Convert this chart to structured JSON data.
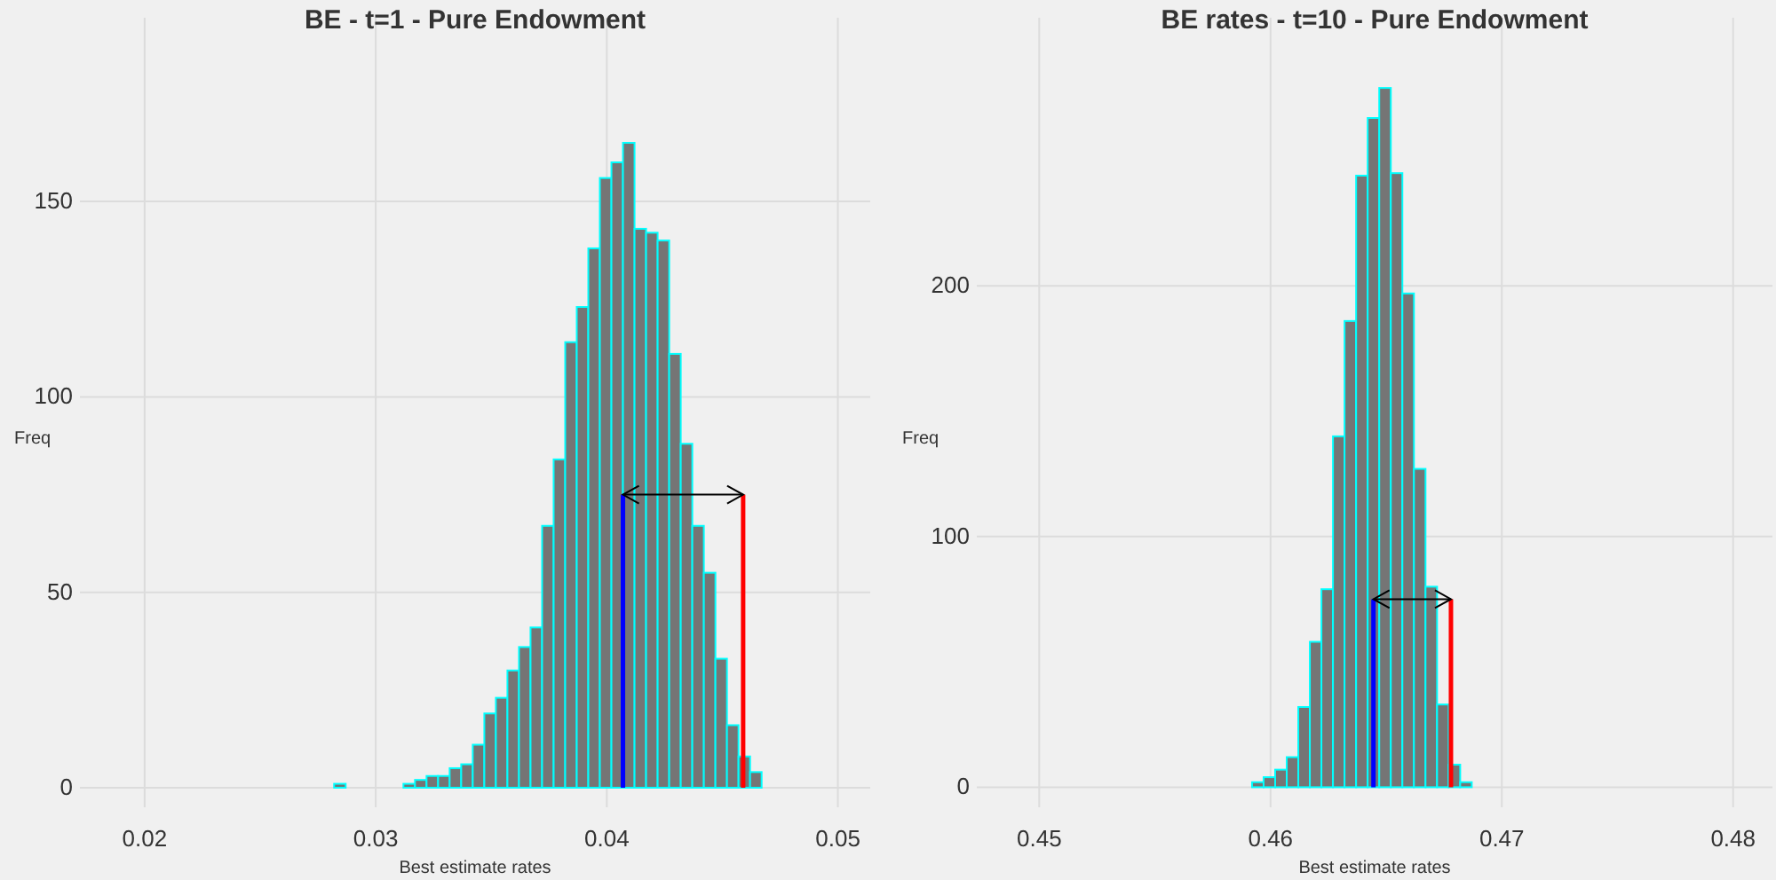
{
  "chart_data": [
    {
      "type": "histogram",
      "title": "BE - t=1 - Pure Endowment",
      "xlabel": "Best estimate rates",
      "ylabel": "Freq",
      "color": "#757575",
      "bins": [
        0.0267,
        0.0272,
        0.0277,
        0.0282,
        0.0287,
        0.0292,
        0.0297,
        0.0302,
        0.0307,
        0.0312,
        0.0317,
        0.0322,
        0.0327,
        0.0332,
        0.0337,
        0.0342,
        0.0347,
        0.0352,
        0.0357,
        0.0362,
        0.0367,
        0.0372,
        0.0377,
        0.0382,
        0.0387,
        0.0392,
        0.0397,
        0.0402,
        0.0407,
        0.0412,
        0.0417,
        0.0422,
        0.0427,
        0.0432,
        0.0437,
        0.0442,
        0.0447,
        0.0452,
        0.0457,
        0.0462,
        0.0467,
        0.0472,
        0.0477,
        0.0482
      ],
      "values": [
        0,
        0,
        0,
        1,
        0,
        0,
        0,
        0,
        0,
        1,
        2,
        3,
        3,
        5,
        6,
        11,
        19,
        23,
        30,
        36,
        41,
        67,
        84,
        114,
        123,
        138,
        156,
        160,
        165,
        143,
        142,
        140,
        111,
        88,
        67,
        55,
        33,
        16,
        8,
        4,
        0,
        0,
        0
      ],
      "series": [
        {
          "type": "line",
          "color": "#0000ff",
          "x": [
            0.0407,
            0.0407
          ],
          "values": [
            0,
            75
          ]
        },
        {
          "type": "line",
          "color": "#ff0000",
          "x": [
            0.0459,
            0.0459
          ],
          "values": [
            0,
            75
          ]
        }
      ],
      "xlim": [
        0.0172,
        0.0514
      ],
      "xticks": [
        0.02,
        0.03,
        0.04,
        0.05
      ],
      "ylim": [
        -5,
        197
      ],
      "yticks": [
        0,
        50,
        100,
        150
      ],
      "grid": true
    },
    {
      "type": "histogram",
      "title": "BE rates - t=10 - Pure Endowment",
      "xlabel": "Best estimate rates",
      "ylabel": "Freq",
      "color": "#757575",
      "bins": [
        0.4587,
        0.4592,
        0.4597,
        0.4602,
        0.4607,
        0.4612,
        0.4617,
        0.4622,
        0.4627,
        0.4632,
        0.4637,
        0.4642,
        0.4647,
        0.4652,
        0.4657,
        0.4662,
        0.4667,
        0.4672,
        0.4677,
        0.4682,
        0.4687
      ],
      "values": [
        0,
        2,
        4,
        7,
        12,
        32,
        58,
        79,
        140,
        186,
        244,
        267,
        279,
        245,
        197,
        127,
        80,
        33,
        9,
        2
      ],
      "series": [
        {
          "type": "line",
          "color": "#0000ff",
          "x": [
            0.46445,
            0.46445
          ],
          "values": [
            0,
            75
          ]
        },
        {
          "type": "line",
          "color": "#ff0000",
          "x": [
            0.4678,
            0.4678
          ],
          "values": [
            0,
            75
          ]
        }
      ],
      "xlim": [
        0.4473,
        0.4817
      ],
      "xticks": [
        0.45,
        0.46,
        0.47,
        0.48
      ],
      "ylim": [
        -8,
        307
      ],
      "yticks": [
        0,
        100,
        200
      ],
      "grid": true
    }
  ]
}
